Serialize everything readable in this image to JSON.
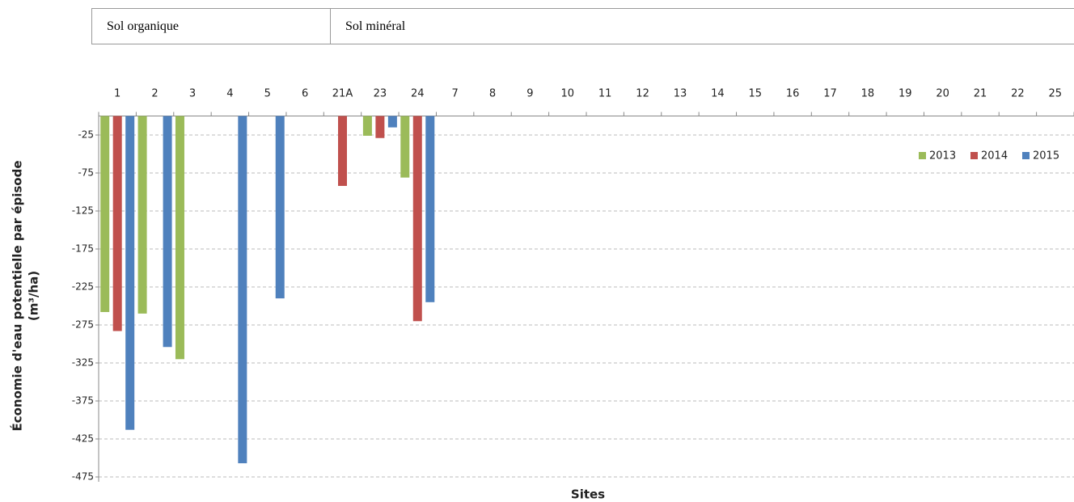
{
  "header": {
    "cells": [
      "Sol organique",
      "Sol minéral"
    ]
  },
  "chart_data": {
    "type": "bar",
    "x_label": "Sites",
    "y_label": [
      "Économie d'eau potentielle par épisode",
      "(m³/ha)"
    ],
    "categories": [
      "1",
      "2",
      "3",
      "4",
      "5",
      "6",
      "21A",
      "23",
      "24",
      "7",
      "8",
      "9",
      "10",
      "11",
      "12",
      "13",
      "14",
      "15",
      "16",
      "17",
      "18",
      "19",
      "20",
      "21",
      "22",
      "25"
    ],
    "series": [
      {
        "name": "2013",
        "color": "#9bbb59",
        "values": [
          -258,
          -260,
          -320,
          null,
          null,
          null,
          null,
          -26,
          -81,
          null,
          null,
          null,
          null,
          null,
          null,
          null,
          null,
          null,
          null,
          null,
          null,
          null,
          null,
          null,
          null,
          null
        ]
      },
      {
        "name": "2014",
        "color": "#c0504d",
        "values": [
          -283,
          null,
          null,
          null,
          null,
          null,
          -92,
          -29,
          -270,
          null,
          null,
          null,
          null,
          null,
          null,
          null,
          null,
          null,
          null,
          null,
          null,
          null,
          null,
          null,
          null,
          null
        ]
      },
      {
        "name": "2015",
        "color": "#4f81bd",
        "values": [
          -413,
          -304,
          null,
          -457,
          -240,
          null,
          null,
          -15,
          -245,
          null,
          null,
          null,
          null,
          null,
          null,
          null,
          null,
          null,
          null,
          null,
          null,
          null,
          null,
          null,
          null,
          null
        ]
      }
    ],
    "ylim": [
      -475,
      0
    ],
    "yticks": [
      -25,
      -75,
      -125,
      -175,
      -225,
      -275,
      -325,
      -375,
      -425,
      -475
    ],
    "grid": true,
    "legend": "right"
  }
}
